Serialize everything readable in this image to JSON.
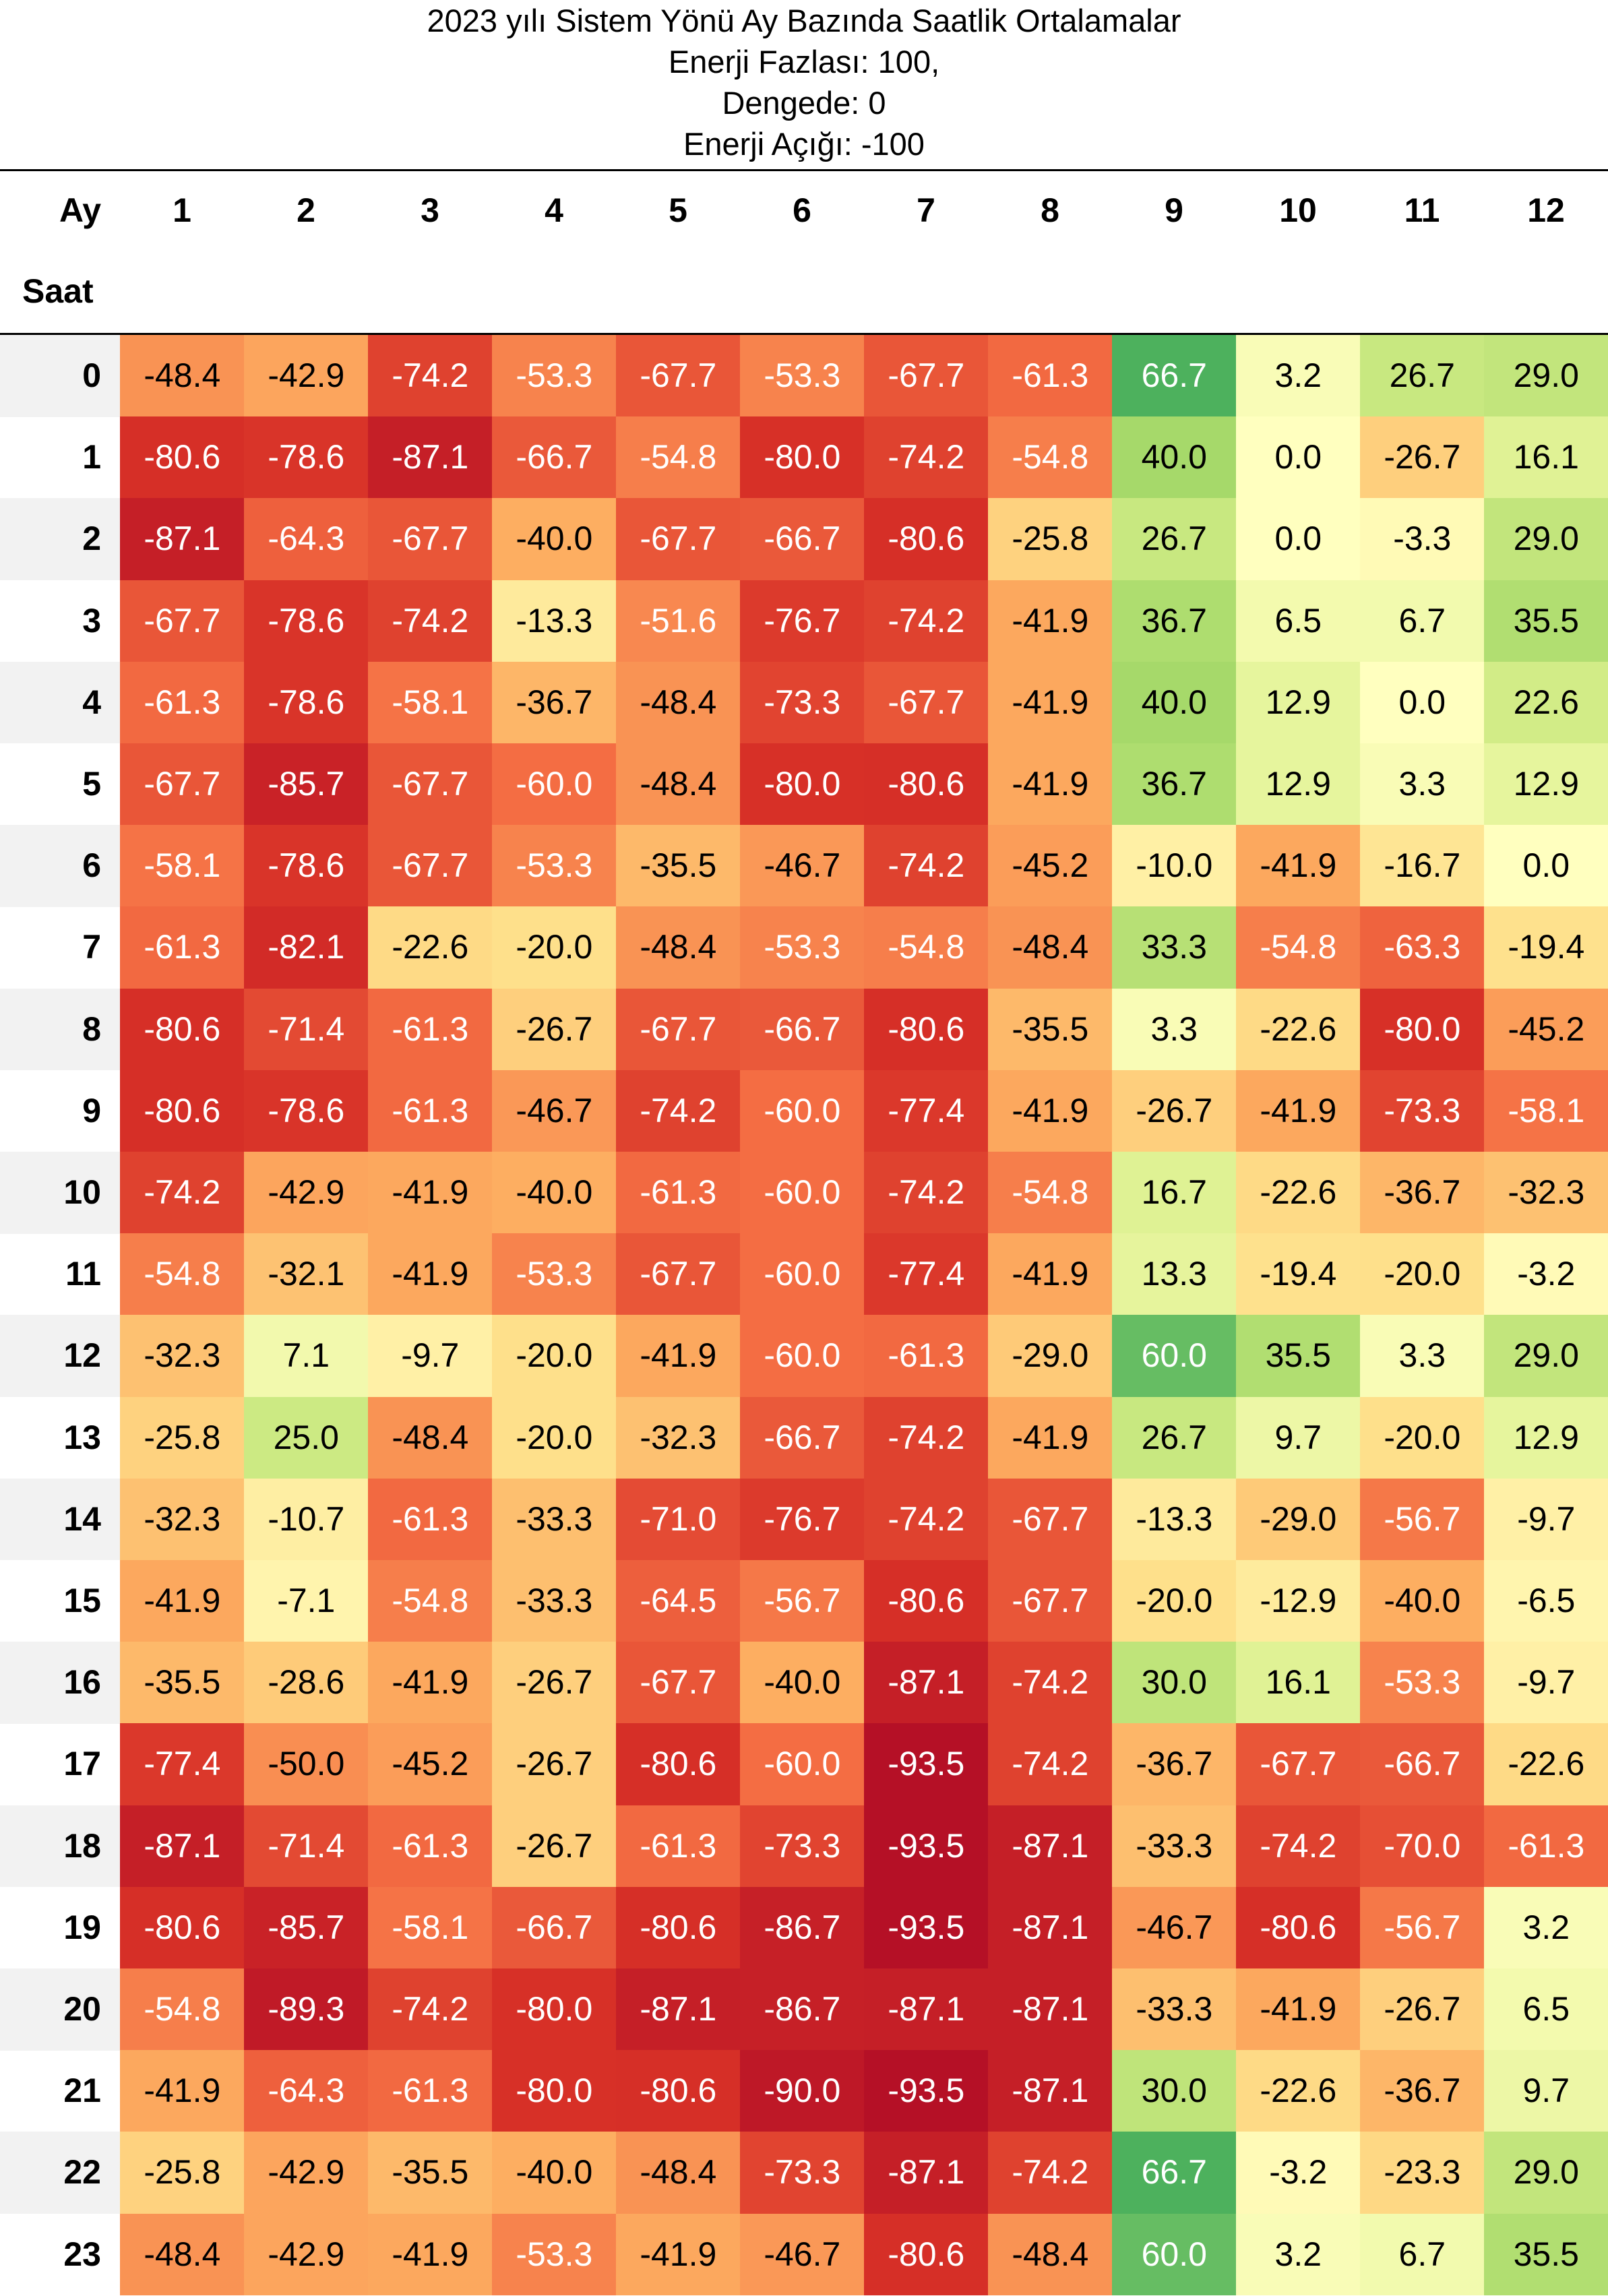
{
  "chart_data": {
    "type": "heatmap",
    "title_lines": [
      "2023 yılı Sistem Yönü Ay Bazında Saatlik Ortalamalar",
      "Enerji Fazlası: 100,",
      "Dengede: 0",
      "Enerji Açığı: -100"
    ],
    "column_axis_label": "Ay",
    "row_axis_label": "Saat",
    "columns": [
      "1",
      "2",
      "3",
      "4",
      "5",
      "6",
      "7",
      "8",
      "9",
      "10",
      "11",
      "12"
    ],
    "rows": [
      "0",
      "1",
      "2",
      "3",
      "4",
      "5",
      "6",
      "7",
      "8",
      "9",
      "10",
      "11",
      "12",
      "13",
      "14",
      "15",
      "16",
      "17",
      "18",
      "19",
      "20",
      "21",
      "22",
      "23"
    ],
    "value_range": [
      -100,
      100
    ],
    "colormap": "red-yellow-green (diverging)",
    "values": [
      [
        "-48.4",
        "-42.9",
        "-74.2",
        "-53.3",
        "-67.7",
        "-53.3",
        "-67.7",
        "-61.3",
        "66.7",
        "3.2",
        "26.7",
        "29.0"
      ],
      [
        "-80.6",
        "-78.6",
        "-87.1",
        "-66.7",
        "-54.8",
        "-80.0",
        "-74.2",
        "-54.8",
        "40.0",
        "0.0",
        "-26.7",
        "16.1"
      ],
      [
        "-87.1",
        "-64.3",
        "-67.7",
        "-40.0",
        "-67.7",
        "-66.7",
        "-80.6",
        "-25.8",
        "26.7",
        "0.0",
        "-3.3",
        "29.0"
      ],
      [
        "-67.7",
        "-78.6",
        "-74.2",
        "-13.3",
        "-51.6",
        "-76.7",
        "-74.2",
        "-41.9",
        "36.7",
        "6.5",
        "6.7",
        "35.5"
      ],
      [
        "-61.3",
        "-78.6",
        "-58.1",
        "-36.7",
        "-48.4",
        "-73.3",
        "-67.7",
        "-41.9",
        "40.0",
        "12.9",
        "0.0",
        "22.6"
      ],
      [
        "-67.7",
        "-85.7",
        "-67.7",
        "-60.0",
        "-48.4",
        "-80.0",
        "-80.6",
        "-41.9",
        "36.7",
        "12.9",
        "3.3",
        "12.9"
      ],
      [
        "-58.1",
        "-78.6",
        "-67.7",
        "-53.3",
        "-35.5",
        "-46.7",
        "-74.2",
        "-45.2",
        "-10.0",
        "-41.9",
        "-16.7",
        "0.0"
      ],
      [
        "-61.3",
        "-82.1",
        "-22.6",
        "-20.0",
        "-48.4",
        "-53.3",
        "-54.8",
        "-48.4",
        "33.3",
        "-54.8",
        "-63.3",
        "-19.4"
      ],
      [
        "-80.6",
        "-71.4",
        "-61.3",
        "-26.7",
        "-67.7",
        "-66.7",
        "-80.6",
        "-35.5",
        "3.3",
        "-22.6",
        "-80.0",
        "-45.2"
      ],
      [
        "-80.6",
        "-78.6",
        "-61.3",
        "-46.7",
        "-74.2",
        "-60.0",
        "-77.4",
        "-41.9",
        "-26.7",
        "-41.9",
        "-73.3",
        "-58.1"
      ],
      [
        "-74.2",
        "-42.9",
        "-41.9",
        "-40.0",
        "-61.3",
        "-60.0",
        "-74.2",
        "-54.8",
        "16.7",
        "-22.6",
        "-36.7",
        "-32.3"
      ],
      [
        "-54.8",
        "-32.1",
        "-41.9",
        "-53.3",
        "-67.7",
        "-60.0",
        "-77.4",
        "-41.9",
        "13.3",
        "-19.4",
        "-20.0",
        "-3.2"
      ],
      [
        "-32.3",
        "7.1",
        "-9.7",
        "-20.0",
        "-41.9",
        "-60.0",
        "-61.3",
        "-29.0",
        "60.0",
        "35.5",
        "3.3",
        "29.0"
      ],
      [
        "-25.8",
        "25.0",
        "-48.4",
        "-20.0",
        "-32.3",
        "-66.7",
        "-74.2",
        "-41.9",
        "26.7",
        "9.7",
        "-20.0",
        "12.9"
      ],
      [
        "-32.3",
        "-10.7",
        "-61.3",
        "-33.3",
        "-71.0",
        "-76.7",
        "-74.2",
        "-67.7",
        "-13.3",
        "-29.0",
        "-56.7",
        "-9.7"
      ],
      [
        "-41.9",
        "-7.1",
        "-54.8",
        "-33.3",
        "-64.5",
        "-56.7",
        "-80.6",
        "-67.7",
        "-20.0",
        "-12.9",
        "-40.0",
        "-6.5"
      ],
      [
        "-35.5",
        "-28.6",
        "-41.9",
        "-26.7",
        "-67.7",
        "-40.0",
        "-87.1",
        "-74.2",
        "30.0",
        "16.1",
        "-53.3",
        "-9.7"
      ],
      [
        "-77.4",
        "-50.0",
        "-45.2",
        "-26.7",
        "-80.6",
        "-60.0",
        "-93.5",
        "-74.2",
        "-36.7",
        "-67.7",
        "-66.7",
        "-22.6"
      ],
      [
        "-87.1",
        "-71.4",
        "-61.3",
        "-26.7",
        "-61.3",
        "-73.3",
        "-93.5",
        "-87.1",
        "-33.3",
        "-74.2",
        "-70.0",
        "-61.3"
      ],
      [
        "-80.6",
        "-85.7",
        "-58.1",
        "-66.7",
        "-80.6",
        "-86.7",
        "-93.5",
        "-87.1",
        "-46.7",
        "-80.6",
        "-56.7",
        "3.2"
      ],
      [
        "-54.8",
        "-89.3",
        "-74.2",
        "-80.0",
        "-87.1",
        "-86.7",
        "-87.1",
        "-87.1",
        "-33.3",
        "-41.9",
        "-26.7",
        "6.5"
      ],
      [
        "-41.9",
        "-64.3",
        "-61.3",
        "-80.0",
        "-80.6",
        "-90.0",
        "-93.5",
        "-87.1",
        "30.0",
        "-22.6",
        "-36.7",
        "9.7"
      ],
      [
        "-25.8",
        "-42.9",
        "-35.5",
        "-40.0",
        "-48.4",
        "-73.3",
        "-87.1",
        "-74.2",
        "66.7",
        "-3.2",
        "-23.3",
        "29.0"
      ],
      [
        "-48.4",
        "-42.9",
        "-41.9",
        "-53.3",
        "-41.9",
        "-46.7",
        "-80.6",
        "-48.4",
        "60.0",
        "3.2",
        "6.7",
        "35.5"
      ]
    ]
  }
}
